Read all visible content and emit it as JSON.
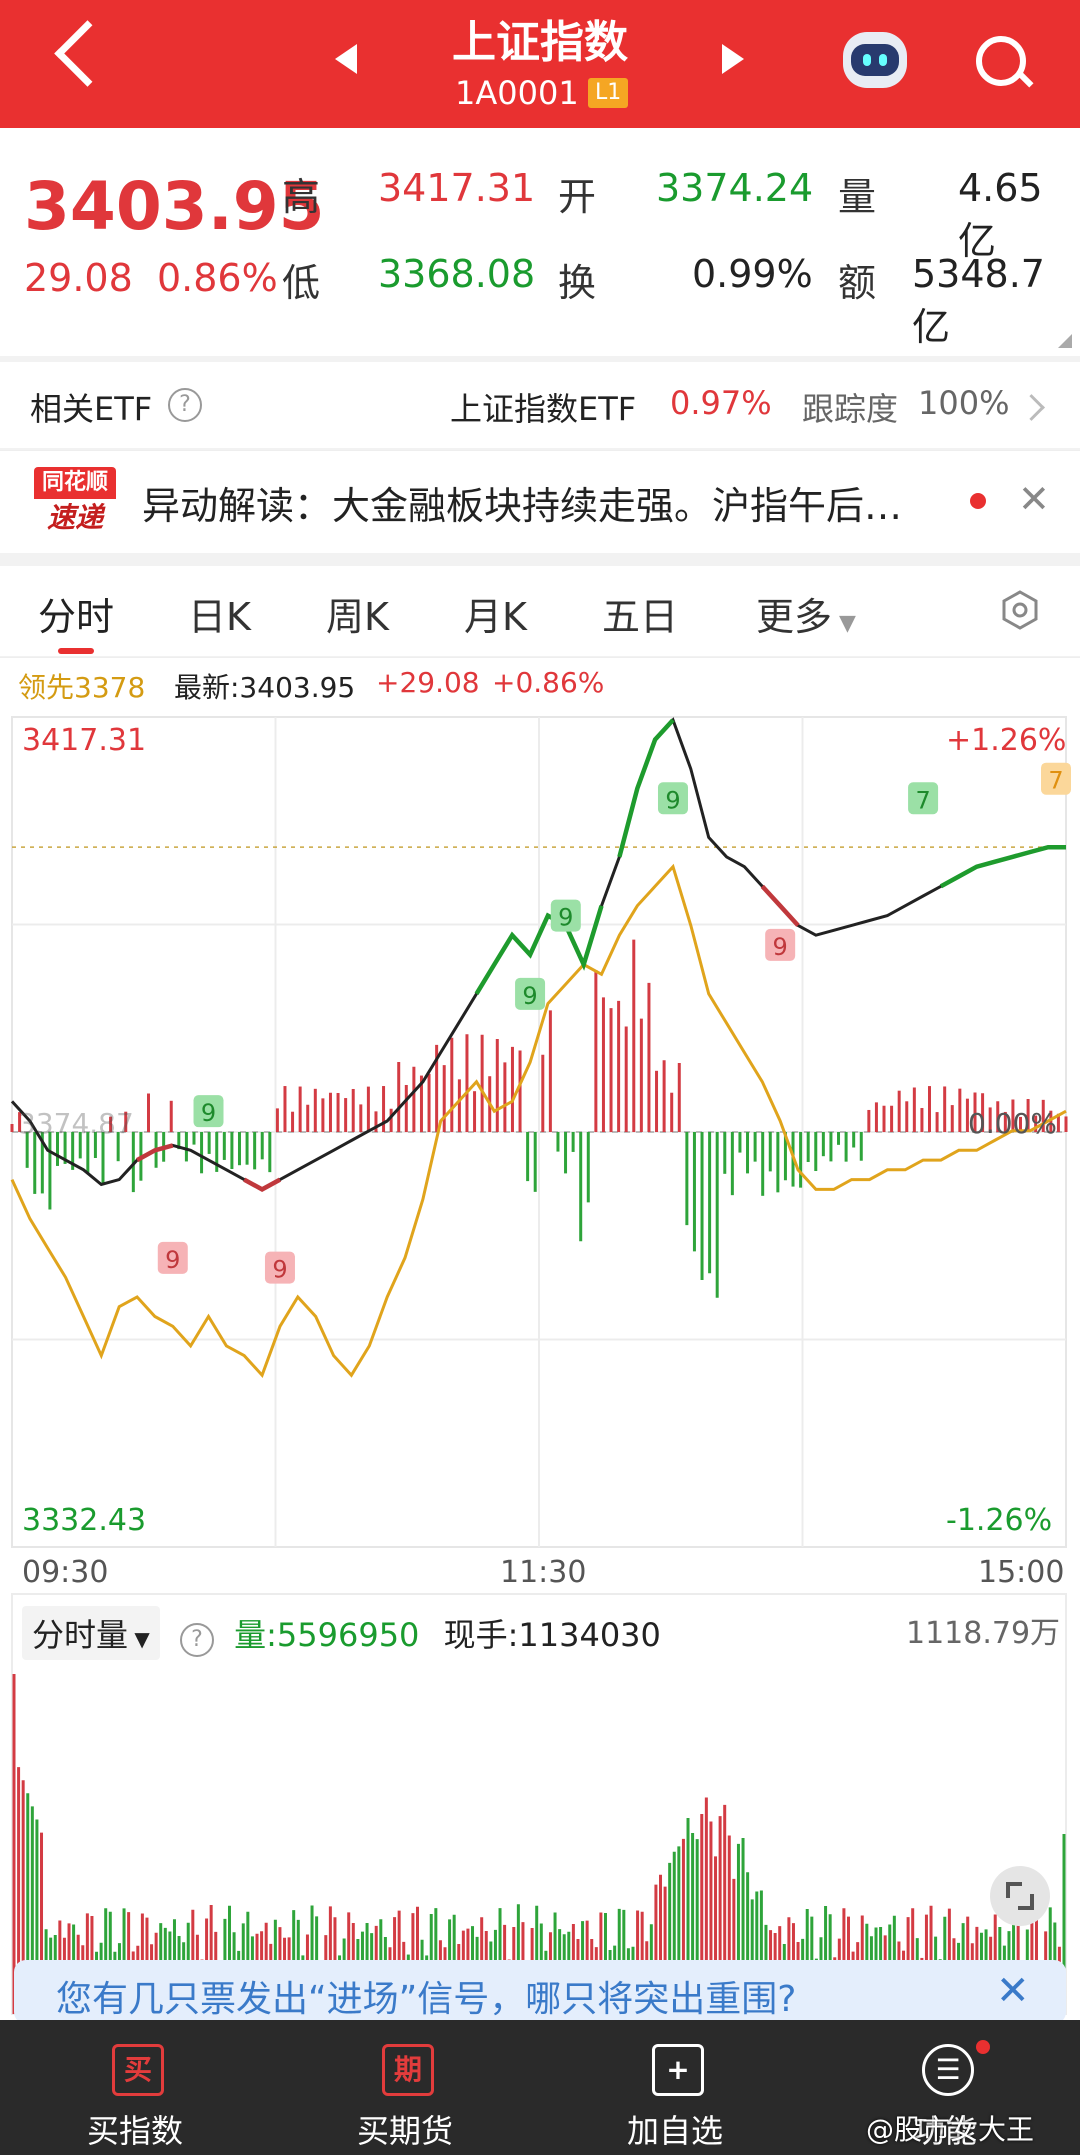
{
  "header": {
    "title": "上证指数",
    "code": "1A0001",
    "level_badge": "L1"
  },
  "quote": {
    "price": "3403.95",
    "change": "29.08",
    "change_pct": "0.86%",
    "high_label": "高",
    "high": "3417.31",
    "open_label": "开",
    "open": "3374.24",
    "volume_label": "量",
    "volume": "4.65亿",
    "low_label": "低",
    "low": "3368.08",
    "turnover_label": "换",
    "turnover": "0.99%",
    "amount_label": "额",
    "amount": "5348.7亿"
  },
  "etf": {
    "label": "相关ETF",
    "name": "上证指数ETF",
    "change": "0.97%",
    "tracking_label": "跟踪度",
    "tracking": "100%"
  },
  "news": {
    "logo_top": "同花顺",
    "logo_bottom": "速递",
    "text": "异动解读：大金融板块持续走强。沪指午后…"
  },
  "tabs": [
    {
      "label": "分时"
    },
    {
      "label": "日K"
    },
    {
      "label": "周K"
    },
    {
      "label": "月K"
    },
    {
      "label": "五日"
    },
    {
      "label": "更多"
    }
  ],
  "info": {
    "lead": "领先3378",
    "latest_label": "最新:3403.95",
    "change": "+29.08",
    "change_pct": "+0.86%"
  },
  "chart_data": {
    "type": "line",
    "y_top": "3417.31",
    "y_bottom": "3332.43",
    "pct_top": "+1.26%",
    "pct_bottom": "-1.26%",
    "ref_left": "3374.87",
    "ref_right": "0.00%",
    "x_ticks": [
      "09:30",
      "11:30",
      "15:00"
    ],
    "price": [
      3378,
      3376,
      3373,
      3372,
      3371,
      3369.5,
      3370,
      3372,
      3373,
      3373.5,
      3373,
      3372,
      3371,
      3370,
      3369,
      3370,
      3371,
      3372,
      3373,
      3374,
      3375,
      3376,
      3378,
      3380,
      3383,
      3386,
      3389,
      3392,
      3395,
      3393,
      3397,
      3396,
      3392,
      3398,
      3403,
      3410,
      3415,
      3417,
      3412,
      3405,
      3403,
      3402,
      3400,
      3398,
      3396,
      3395,
      3395.5,
      3396,
      3396.5,
      3397,
      3398,
      3399,
      3400,
      3401,
      3402,
      3402.5,
      3403,
      3403.5,
      3404,
      3404
    ],
    "lead": [
      3370,
      3366,
      3363,
      3360,
      3356,
      3352,
      3357,
      3358,
      3356,
      3355,
      3353,
      3356,
      3353,
      3352,
      3350,
      3355,
      3358,
      3356,
      3352,
      3350,
      3353,
      3358,
      3362,
      3368,
      3376,
      3378,
      3380,
      3377,
      3378,
      3382,
      3388,
      3390,
      3392,
      3391,
      3395,
      3398,
      3400,
      3402,
      3396,
      3389,
      3386,
      3383,
      3380,
      3376,
      3371,
      3369,
      3369,
      3370,
      3370,
      3371,
      3371,
      3372,
      3372,
      3373,
      3373,
      3374,
      3375,
      3375,
      3376,
      3377
    ],
    "markers": [
      {
        "label": "9"
      },
      {
        "label": "9"
      },
      {
        "label": "9"
      },
      {
        "label": "9"
      },
      {
        "label": "9"
      },
      {
        "label": "9"
      },
      {
        "label": "9"
      },
      {
        "label": "7"
      }
    ]
  },
  "volume": {
    "selector": "分时量",
    "vol_label": "量:5596950",
    "hand_label": "现手:1134030",
    "max_label": "1118.79万"
  },
  "banner": {
    "text": "您有几只票发出“进场”信号，哪只将突出重围?"
  },
  "nav": [
    {
      "icon": "买",
      "label": "买指数"
    },
    {
      "icon": "期",
      "label": "买期货"
    },
    {
      "icon": "+",
      "label": "加自选"
    },
    {
      "icon": "☰",
      "label": "功能"
    }
  ],
  "watermark": "@股市女大王"
}
